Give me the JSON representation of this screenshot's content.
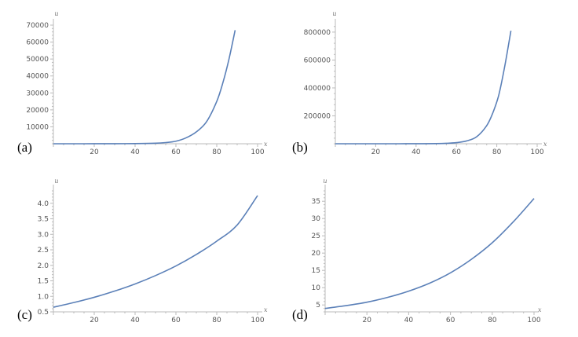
{
  "colors": {
    "curve": "#5b80b8",
    "axis": "#bbbbbb",
    "tick_text": "#555555",
    "background": "#ffffff"
  },
  "chart_data": [
    {
      "panel_label": "(a)",
      "type": "line",
      "title": "",
      "xlabel": "x",
      "ylabel": "u",
      "xlim": [
        0,
        100
      ],
      "ylim": [
        0,
        70000
      ],
      "x_ticks": [
        20,
        40,
        60,
        80,
        100
      ],
      "y_ticks": [
        10000,
        20000,
        30000,
        40000,
        50000,
        60000,
        70000
      ],
      "grid": false,
      "series": [
        {
          "x": [
            0,
            10,
            20,
            30,
            40,
            50,
            55,
            60,
            65,
            70,
            75,
            80,
            83,
            86,
            89
          ],
          "y": [
            0,
            2,
            10,
            40,
            100,
            300,
            700,
            1500,
            3500,
            7000,
            13000,
            25000,
            36000,
            50000,
            67000
          ]
        }
      ]
    },
    {
      "panel_label": "(b)",
      "type": "line",
      "title": "",
      "xlabel": "x",
      "ylabel": "u",
      "xlim": [
        0,
        100
      ],
      "ylim": [
        0,
        850000
      ],
      "x_ticks": [
        20,
        40,
        60,
        80,
        100
      ],
      "y_ticks": [
        200000,
        400000,
        600000,
        800000
      ],
      "grid": false,
      "series": [
        {
          "x": [
            0,
            10,
            20,
            30,
            40,
            50,
            55,
            60,
            65,
            70,
            75,
            78,
            81,
            84,
            87
          ],
          "y": [
            0,
            2,
            10,
            50,
            200,
            1000,
            3000,
            8000,
            20000,
            50000,
            130000,
            220000,
            350000,
            560000,
            810000
          ]
        }
      ]
    },
    {
      "panel_label": "(c)",
      "type": "line",
      "title": "",
      "xlabel": "x",
      "ylabel": "u",
      "xlim": [
        0,
        100
      ],
      "ylim": [
        0.5,
        4.4
      ],
      "x_ticks": [
        20,
        40,
        60,
        80,
        100
      ],
      "y_ticks": [
        0.5,
        1.0,
        1.5,
        2.0,
        2.5,
        3.0,
        3.5,
        4.0
      ],
      "y_tick_labels": [
        "0.5",
        "1.0",
        "1.5",
        "2.0",
        "2.5",
        "3.0",
        "3.5",
        "4.0"
      ],
      "grid": false,
      "series": [
        {
          "x": [
            0,
            10,
            20,
            30,
            40,
            50,
            60,
            70,
            80,
            90,
            100
          ],
          "y": [
            0.65,
            0.8,
            0.97,
            1.17,
            1.4,
            1.67,
            1.98,
            2.35,
            2.78,
            3.3,
            4.25
          ]
        }
      ]
    },
    {
      "panel_label": "(d)",
      "type": "line",
      "title": "",
      "xlabel": "x",
      "ylabel": "u",
      "xlim": [
        0,
        100
      ],
      "ylim": [
        3,
        38
      ],
      "x_ticks": [
        20,
        40,
        60,
        80,
        100
      ],
      "y_ticks": [
        5,
        10,
        15,
        20,
        25,
        30,
        35
      ],
      "grid": false,
      "series": [
        {
          "x": [
            0,
            10,
            20,
            30,
            40,
            50,
            60,
            70,
            80,
            90,
            100
          ],
          "y": [
            4,
            4.8,
            5.8,
            7.2,
            9,
            11.3,
            14.3,
            18.2,
            23,
            29,
            35.8
          ]
        }
      ]
    }
  ]
}
